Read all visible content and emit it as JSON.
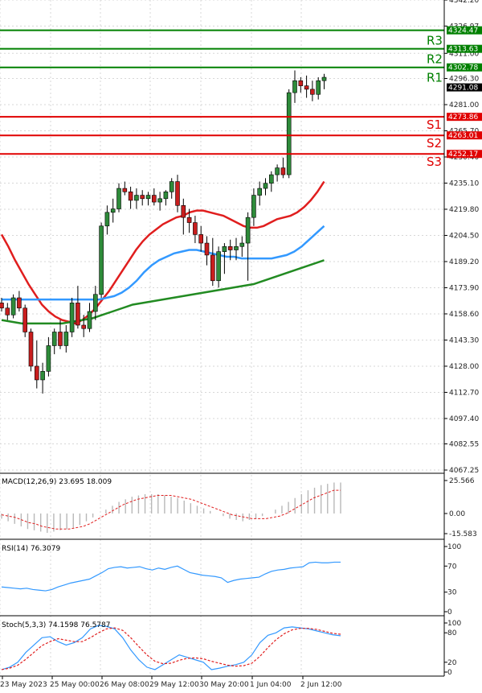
{
  "chart_data": [
    {
      "type": "candlestick",
      "title": "",
      "ylim": [
        4067.25,
        4342.2
      ],
      "y_ticks": [
        "4342.20",
        "4326.97",
        "4311.00",
        "4296.30",
        "4281.00",
        "4265.70",
        "4250.40",
        "4235.10",
        "4219.80",
        "4204.50",
        "4189.20",
        "4173.90",
        "4158.60",
        "4143.30",
        "4128.00",
        "4112.70",
        "4097.40",
        "4082.55",
        "4067.25"
      ],
      "x_ticks": [
        "23 May 2023",
        "25 May 00:00",
        "26 May 08:00",
        "29 May 12:00",
        "30 May 20:00",
        "1 Jun 04:00",
        "2 Jun 12:00"
      ],
      "levels": [
        {
          "name": "R3",
          "value": 4324.47,
          "color": "#008000"
        },
        {
          "name": "R2",
          "value": 4313.63,
          "color": "#008000"
        },
        {
          "name": "R1",
          "value": 4302.78,
          "color": "#008000"
        },
        {
          "name": "S1",
          "value": 4273.86,
          "color": "#e00000"
        },
        {
          "name": "S2",
          "value": 4263.01,
          "color": "#e00000"
        },
        {
          "name": "S3",
          "value": 4252.17,
          "color": "#e00000"
        }
      ],
      "last_price": "4291.08",
      "candles": [
        [
          4165,
          4168,
          4160,
          4162
        ],
        [
          4162,
          4165,
          4155,
          4158
        ],
        [
          4158,
          4170,
          4156,
          4168
        ],
        [
          4168,
          4172,
          4160,
          4162
        ],
        [
          4162,
          4164,
          4145,
          4148
        ],
        [
          4148,
          4150,
          4125,
          4128
        ],
        [
          4128,
          4143,
          4115,
          4120
        ],
        [
          4120,
          4130,
          4112,
          4125
        ],
        [
          4125,
          4145,
          4122,
          4140
        ],
        [
          4140,
          4150,
          4135,
          4148
        ],
        [
          4148,
          4155,
          4138,
          4140
        ],
        [
          4140,
          4152,
          4136,
          4148
        ],
        [
          4148,
          4168,
          4145,
          4165
        ],
        [
          4165,
          4175,
          4150,
          4152
        ],
        [
          4152,
          4158,
          4145,
          4150
        ],
        [
          4150,
          4165,
          4148,
          4160
        ],
        [
          4160,
          4175,
          4155,
          4170
        ],
        [
          4170,
          4212,
          4168,
          4210
        ],
        [
          4210,
          4222,
          4205,
          4218
        ],
        [
          4218,
          4226,
          4212,
          4220
        ],
        [
          4220,
          4235,
          4218,
          4232
        ],
        [
          4232,
          4236,
          4228,
          4230
        ],
        [
          4230,
          4233,
          4220,
          4225
        ],
        [
          4225,
          4232,
          4220,
          4228
        ],
        [
          4228,
          4231,
          4222,
          4226
        ],
        [
          4226,
          4230,
          4222,
          4228
        ],
        [
          4228,
          4232,
          4222,
          4224
        ],
        [
          4224,
          4230,
          4219,
          4226
        ],
        [
          4226,
          4231,
          4222,
          4230
        ],
        [
          4230,
          4238,
          4226,
          4236
        ],
        [
          4236,
          4240,
          4218,
          4222
        ],
        [
          4222,
          4226,
          4205,
          4215
        ],
        [
          4215,
          4220,
          4206,
          4212
        ],
        [
          4212,
          4216,
          4200,
          4205
        ],
        [
          4205,
          4210,
          4195,
          4200
        ],
        [
          4200,
          4204,
          4187,
          4193
        ],
        [
          4193,
          4203,
          4175,
          4178
        ],
        [
          4178,
          4198,
          4174,
          4195
        ],
        [
          4195,
          4200,
          4182,
          4198
        ],
        [
          4198,
          4202,
          4190,
          4196
        ],
        [
          4196,
          4203,
          4190,
          4198
        ],
        [
          4198,
          4204,
          4192,
          4200
        ],
        [
          4200,
          4218,
          4178,
          4215
        ],
        [
          4215,
          4232,
          4210,
          4228
        ],
        [
          4228,
          4236,
          4222,
          4232
        ],
        [
          4232,
          4238,
          4228,
          4235
        ],
        [
          4235,
          4242,
          4230,
          4240
        ],
        [
          4240,
          4246,
          4236,
          4244
        ],
        [
          4244,
          4250,
          4238,
          4240
        ],
        [
          4240,
          4290,
          4238,
          4288
        ],
        [
          4288,
          4301,
          4282,
          4295
        ],
        [
          4295,
          4297,
          4288,
          4292
        ],
        [
          4292,
          4298,
          4285,
          4290
        ],
        [
          4290,
          4295,
          4283,
          4287
        ],
        [
          4287,
          4297,
          4284,
          4295
        ],
        [
          4295,
          4299,
          4290,
          4297
        ]
      ],
      "ma_red": [
        4205,
        4198,
        4190,
        4183,
        4176,
        4170,
        4164,
        4160,
        4157,
        4155,
        4154,
        4153,
        4155,
        4158,
        4162,
        4167,
        4172,
        4178,
        4184,
        4190,
        4196,
        4201,
        4205,
        4208,
        4211,
        4213,
        4215,
        4216,
        4218,
        4219,
        4219,
        4218,
        4217,
        4216,
        4214,
        4212,
        4210,
        4209,
        4209,
        4210,
        4212,
        4214,
        4215,
        4216,
        4218,
        4221,
        4225,
        4230,
        4236
      ],
      "ma_blue": [
        4167,
        4167,
        4167,
        4167,
        4167,
        4167,
        4167,
        4167,
        4167,
        4167,
        4167,
        4167,
        4167,
        4167,
        4168,
        4169,
        4171,
        4174,
        4178,
        4183,
        4187,
        4190,
        4192,
        4194,
        4195,
        4196,
        4196,
        4195,
        4194,
        4193,
        4192,
        4192,
        4191,
        4191,
        4191,
        4191,
        4191,
        4192,
        4193,
        4195,
        4198,
        4202,
        4206,
        4210
      ],
      "ma_green": [
        4155,
        4154,
        4153,
        4153,
        4153,
        4153,
        4153,
        4154,
        4155,
        4156,
        4158,
        4160,
        4162,
        4164,
        4165,
        4166,
        4167,
        4168,
        4169,
        4170,
        4171,
        4172,
        4173,
        4174,
        4175,
        4176,
        4178,
        4180,
        4182,
        4184,
        4186,
        4188,
        4190
      ]
    },
    {
      "type": "bar",
      "name": "MACD(12,26,9) 23.695 18.009",
      "ylim": [
        -15.583,
        25.566
      ],
      "y_ticks": [
        "25.566",
        "0.00",
        "-15.583"
      ],
      "histogram": [
        -4,
        -6,
        -8,
        -10,
        -12,
        -13,
        -14,
        -15,
        -14,
        -13,
        -12,
        -11,
        -9,
        -6,
        -3,
        0,
        3,
        6,
        9,
        11,
        13,
        14,
        15,
        15,
        15,
        14,
        13,
        12,
        10,
        8,
        6,
        4,
        2,
        0,
        -2,
        -4,
        -5,
        -6,
        -5,
        -4,
        -2,
        0,
        3,
        6,
        9,
        12,
        15,
        18,
        20,
        22,
        23,
        24,
        24
      ],
      "signal": [
        -1,
        -2,
        -3,
        -5,
        -7,
        -8,
        -10,
        -11,
        -12,
        -12,
        -12,
        -11,
        -10,
        -8,
        -5,
        -2,
        1,
        4,
        7,
        9,
        11,
        12,
        13,
        14,
        14,
        14,
        13,
        12,
        11,
        9,
        7,
        5,
        3,
        1,
        -1,
        -2,
        -3,
        -4,
        -4,
        -4,
        -3,
        -2,
        0,
        3,
        6,
        9,
        12,
        14,
        16,
        18,
        18
      ]
    },
    {
      "type": "line",
      "name": "RSI(14) 76.3079",
      "ylim": [
        0,
        100
      ],
      "y_ticks": [
        "100",
        "70",
        "30",
        "0"
      ],
      "values": [
        38,
        37,
        36,
        35,
        36,
        34,
        33,
        32,
        34,
        38,
        41,
        44,
        46,
        48,
        50,
        55,
        60,
        66,
        68,
        69,
        67,
        68,
        69,
        66,
        64,
        67,
        65,
        68,
        70,
        65,
        60,
        58,
        56,
        55,
        54,
        52,
        45,
        48,
        50,
        51,
        52,
        53,
        58,
        62,
        64,
        65,
        67,
        68,
        69,
        75,
        76,
        75,
        75,
        76,
        76
      ]
    },
    {
      "type": "line",
      "name": "Stoch(5,3,3) 74.1598 76.5787",
      "ylim": [
        0,
        100
      ],
      "y_ticks": [
        "100",
        "80",
        "20",
        "0"
      ],
      "values": [
        5,
        10,
        20,
        40,
        55,
        70,
        72,
        62,
        55,
        60,
        70,
        88,
        95,
        93,
        88,
        70,
        45,
        25,
        10,
        5,
        15,
        25,
        35,
        30,
        25,
        20,
        5,
        8,
        12,
        15,
        20,
        35,
        60,
        75,
        80,
        90,
        92,
        90,
        88,
        84,
        80,
        76,
        74
      ],
      "signal": [
        5,
        8,
        14,
        26,
        40,
        54,
        62,
        68,
        65,
        62,
        62,
        70,
        80,
        88,
        90,
        85,
        70,
        52,
        35,
        22,
        17,
        18,
        24,
        28,
        29,
        27,
        22,
        18,
        14,
        12,
        13,
        18,
        32,
        50,
        66,
        78,
        86,
        89,
        89,
        87,
        83,
        79,
        77
      ]
    }
  ]
}
